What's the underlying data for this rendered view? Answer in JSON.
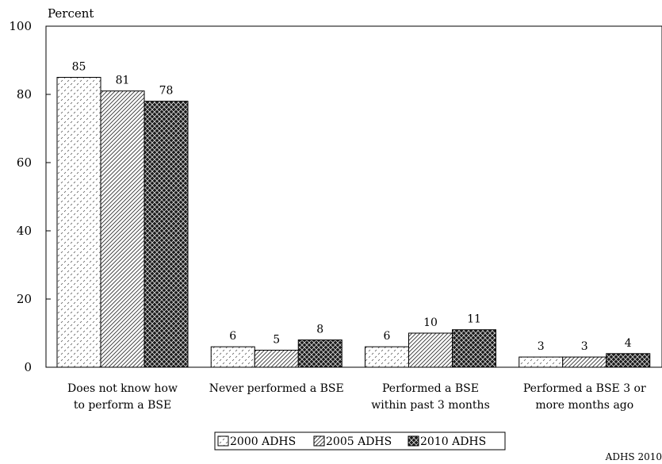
{
  "chart_data": {
    "type": "bar",
    "title": "",
    "ylabel": "Percent",
    "xlabel": "",
    "ylim": [
      0,
      100
    ],
    "yticks": [
      0,
      20,
      40,
      60,
      80,
      100
    ],
    "grid": false,
    "legend_position": "bottom",
    "categories": [
      [
        "Does not know how",
        "to perform a BSE"
      ],
      [
        "Never performed a BSE"
      ],
      [
        "Performed a BSE",
        "within past 3 months"
      ],
      [
        "Performed a BSE 3 or",
        "more months ago"
      ]
    ],
    "series": [
      {
        "name": "2000 ADHS",
        "values": [
          85,
          6,
          6,
          3
        ],
        "pattern": "dots"
      },
      {
        "name": "2005 ADHS",
        "values": [
          81,
          5,
          10,
          3
        ],
        "pattern": "diagonal"
      },
      {
        "name": "2010 ADHS",
        "values": [
          78,
          8,
          11,
          4
        ],
        "pattern": "crosshatch-dark"
      }
    ],
    "source_note": "ADHS 2010"
  }
}
